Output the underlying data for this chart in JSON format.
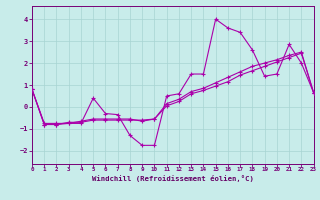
{
  "background_color": "#c8ecea",
  "grid_color": "#a8d4d2",
  "line_color": "#aa00aa",
  "xlabel": "Windchill (Refroidissement éolien,°C)",
  "xlim": [
    0,
    23
  ],
  "ylim": [
    -2.6,
    4.6
  ],
  "xticks": [
    0,
    1,
    2,
    3,
    4,
    5,
    6,
    7,
    8,
    9,
    10,
    11,
    12,
    13,
    14,
    15,
    16,
    17,
    18,
    19,
    20,
    21,
    22,
    23
  ],
  "yticks": [
    -2,
    -1,
    0,
    1,
    2,
    3,
    4
  ],
  "line1_x": [
    0,
    1,
    2,
    3,
    4,
    5,
    6,
    7,
    8,
    9,
    10,
    11,
    12,
    13,
    14,
    15,
    16,
    17,
    18,
    19,
    20,
    21,
    22,
    23
  ],
  "line1_y": [
    0.8,
    -0.75,
    -0.75,
    -0.75,
    -0.75,
    0.4,
    -0.3,
    -0.35,
    -1.3,
    -1.75,
    -1.75,
    0.5,
    0.6,
    1.5,
    1.5,
    4.0,
    3.6,
    3.4,
    2.6,
    1.4,
    1.5,
    2.85,
    2.0,
    0.65
  ],
  "line2_x": [
    0,
    1,
    2,
    3,
    4,
    5,
    6,
    7,
    8,
    9,
    10,
    11,
    12,
    13,
    14,
    15,
    16,
    17,
    18,
    19,
    20,
    21,
    22,
    23
  ],
  "line2_y": [
    0.8,
    -0.8,
    -0.8,
    -0.7,
    -0.7,
    -0.6,
    -0.6,
    -0.6,
    -0.6,
    -0.6,
    -0.55,
    0.15,
    0.35,
    0.7,
    0.85,
    1.1,
    1.35,
    1.6,
    1.85,
    2.0,
    2.15,
    2.35,
    2.5,
    0.65
  ],
  "line3_x": [
    0,
    1,
    2,
    3,
    4,
    5,
    6,
    7,
    8,
    9,
    10,
    11,
    12,
    13,
    14,
    15,
    16,
    17,
    18,
    19,
    20,
    21,
    22,
    23
  ],
  "line3_y": [
    0.8,
    -0.8,
    -0.8,
    -0.75,
    -0.65,
    -0.55,
    -0.55,
    -0.55,
    -0.55,
    -0.65,
    -0.55,
    0.05,
    0.25,
    0.6,
    0.75,
    0.95,
    1.15,
    1.45,
    1.65,
    1.85,
    2.05,
    2.25,
    2.45,
    0.65
  ]
}
